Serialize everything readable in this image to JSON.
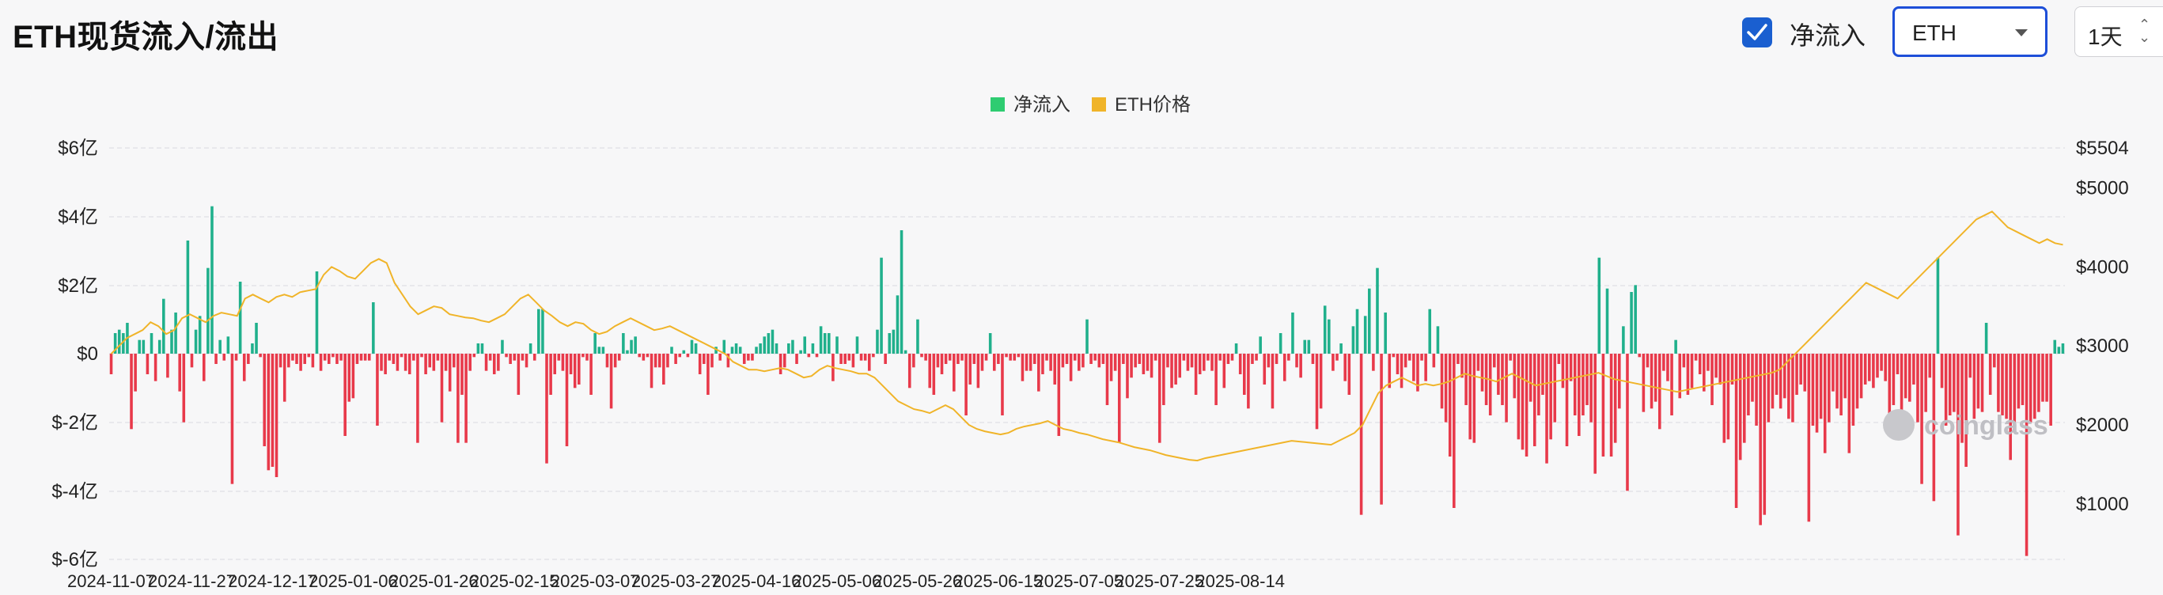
{
  "header": {
    "title": "ETH现货流入/流出",
    "checkbox_label": "净流入",
    "checkbox_checked": true,
    "asset_select": "ETH",
    "interval_select": "1天"
  },
  "colors": {
    "inflow": "#20b08c",
    "outflow": "#e8394a",
    "price": "#f0b429",
    "legend_inflow": "#2ecc71",
    "checkbox": "#1a5fd0"
  },
  "watermark": "coinglass",
  "chart_data": {
    "type": "bar",
    "legend": [
      "净流入",
      "ETH价格"
    ],
    "legend_position": "top-center",
    "grid": true,
    "x_tick_labels": [
      "2024-11-07",
      "2024-11-27",
      "2024-12-17",
      "2025-01-06",
      "2025-01-26",
      "2025-02-15",
      "2025-03-07",
      "2025-03-27",
      "2025-04-16",
      "2025-05-06",
      "2025-05-26",
      "2025-06-15",
      "2025-07-05",
      "2025-07-25",
      "2025-08-14"
    ],
    "y_left": {
      "ylim": [
        -600000000,
        600000000
      ],
      "ticks": [
        "$6亿",
        "$4亿",
        "$2亿",
        "$0",
        "$-2亿",
        "$-4亿",
        "$-6亿"
      ]
    },
    "y_right": {
      "ylim": [
        300,
        5504
      ],
      "ticks": [
        "$5504",
        "$5000",
        "$4000",
        "$3000",
        "$2000",
        "$1000"
      ]
    },
    "series": [
      {
        "name": "净流入",
        "unit": "亿美元",
        "start_date": "2024-11-07",
        "values": [
          -0.6,
          0.6,
          0.7,
          0.6,
          0.9,
          -2.2,
          -1.1,
          0.4,
          0.4,
          -0.6,
          0.6,
          -0.8,
          0.4,
          1.6,
          -0.7,
          0.7,
          1.2,
          -1.1,
          -2.0,
          3.3,
          -0.4,
          0.7,
          1.1,
          -0.8,
          2.5,
          4.3,
          -0.3,
          0.4,
          -0.2,
          0.5,
          -3.8,
          -0.2,
          2.1,
          -0.8,
          -0.3,
          0.3,
          0.9,
          -0.1,
          -2.7,
          -3.4,
          -3.3,
          -3.6,
          -0.4,
          -1.4,
          -0.4,
          -0.2,
          -0.3,
          -0.5,
          -0.3,
          -0.1,
          -0.4,
          2.4,
          -0.5,
          -0.2,
          -0.3,
          -0.1,
          -0.3,
          -0.2,
          -2.4,
          -1.4,
          -1.3,
          -0.3,
          -0.2,
          -0.2,
          -0.2,
          1.5,
          -2.1,
          -0.5,
          -0.6,
          -0.2,
          -0.3,
          -0.5,
          -0.1,
          -0.5,
          -0.6,
          -0.2,
          -2.6,
          -0.1,
          -0.6,
          -0.4,
          -0.5,
          -0.2,
          -2.0,
          -0.5,
          -1.1,
          -0.4,
          -2.6,
          -1.2,
          -2.6,
          -0.5,
          -0.1,
          0.3,
          0.3,
          -0.5,
          -0.2,
          -0.6,
          -0.5,
          0.4,
          -0.1,
          -0.3,
          -0.2,
          -1.2,
          -0.2,
          -0.4,
          0.3,
          -0.2,
          1.3,
          1.3,
          -3.2,
          -1.2,
          -0.6,
          -0.2,
          -0.5,
          -2.7,
          -0.6,
          -1.0,
          -0.9,
          -0.1,
          -0.2,
          -1.2,
          0.6,
          0.2,
          0.2,
          -0.4,
          -1.6,
          -0.4,
          -0.2,
          0.6,
          0.1,
          0.4,
          0.5,
          -0.1,
          -0.2,
          -0.1,
          -1.0,
          -0.4,
          -0.4,
          -0.9,
          -0.4,
          0.2,
          -0.3,
          -0.1,
          0.1,
          -0.1,
          0.4,
          0.3,
          -0.6,
          -0.3,
          -1.2,
          -0.4,
          0.2,
          -0.2,
          0.4,
          -0.4,
          0.2,
          0.3,
          0.2,
          -0.3,
          -0.2,
          -0.2,
          0.2,
          0.3,
          0.5,
          0.6,
          0.7,
          0.3,
          -0.6,
          -0.4,
          0.3,
          0.4,
          -0.3,
          0.1,
          0.5,
          -0.1,
          0.3,
          -0.1,
          0.8,
          0.6,
          0.6,
          -0.8,
          0.5,
          -0.3,
          -0.3,
          -0.2,
          -0.4,
          0.5,
          -0.2,
          -0.2,
          -0.5,
          -0.1,
          0.7,
          2.8,
          -0.3,
          0.6,
          0.7,
          1.7,
          3.6,
          0.1,
          -1.0,
          -0.4,
          1.0,
          -0.1,
          -0.2,
          -1.0,
          -1.2,
          -0.4,
          -0.6,
          -0.3,
          -0.2,
          -1.1,
          -0.3,
          -0.2,
          -1.8,
          -0.9,
          -0.3,
          -1.0,
          -0.5,
          -0.2,
          0.6,
          -0.5,
          -0.3,
          -1.8,
          -0.1,
          -0.2,
          -0.2,
          -0.1,
          -0.8,
          -0.5,
          -0.5,
          -0.3,
          -1.1,
          -0.6,
          -0.2,
          -0.5,
          -0.9,
          -2.4,
          -0.4,
          -0.3,
          -0.8,
          -0.2,
          -0.5,
          -0.4,
          1.0,
          -0.3,
          -0.2,
          -0.4,
          -0.3,
          -1.5,
          -0.8,
          -0.5,
          -2.6,
          -0.3,
          -1.3,
          -0.7,
          -0.4,
          -0.3,
          -0.6,
          -0.5,
          -0.7,
          -0.2,
          -2.6,
          -1.5,
          -0.4,
          -1.0,
          -0.9,
          -0.7,
          -0.2,
          -0.5,
          -0.4,
          -1.2,
          -0.6,
          -0.5,
          -0.2,
          -0.5,
          -1.5,
          -0.2,
          -1.0,
          -0.3,
          -0.2,
          0.3,
          -0.6,
          -1.2,
          -1.6,
          -0.3,
          -0.2,
          0.5,
          -0.9,
          -0.4,
          -1.6,
          -0.3,
          0.6,
          -0.8,
          -0.2,
          1.2,
          -0.4,
          -0.7,
          0.4,
          0.4,
          -0.3,
          -2.2,
          -1.6,
          1.4,
          1.0,
          -0.5,
          -0.2,
          0.3,
          -0.8,
          -1.2,
          0.8,
          1.3,
          -4.7,
          1.1,
          1.9,
          -0.5,
          2.5,
          -4.4,
          1.2,
          -1.0,
          -0.1,
          -0.6,
          -1.0,
          -0.4,
          -0.2,
          -0.8,
          -1.1,
          -0.2,
          -0.8,
          1.3,
          -0.4,
          0.8,
          -1.6,
          -2.0,
          -3.0,
          -4.5,
          -0.3,
          -0.7,
          -1.5,
          -2.5,
          -2.6,
          -0.5,
          -1.1,
          -1.5,
          -1.8,
          -0.4,
          -1.2,
          -1.5,
          -2.0,
          -0.2,
          -1.3,
          -2.5,
          -2.8,
          -3.0,
          -1.4,
          -2.7,
          -1.8,
          -1.2,
          -3.2,
          -2.5,
          -2.0,
          -0.3,
          -1.0,
          -2.7,
          -0.8,
          -1.8,
          -2.4,
          -1.8,
          -1.5,
          -2.0,
          -3.5,
          2.8,
          -3.0,
          1.9,
          -3.0,
          -2.6,
          -1.6,
          0.8,
          -4.0,
          1.8,
          2.0,
          -0.1,
          -1.7,
          -0.4,
          -1.6,
          -1.4,
          -2.2,
          -0.5,
          -0.8,
          -1.8,
          0.4,
          -1.3,
          -0.4,
          -1.2,
          -1.0,
          -0.2,
          -0.6,
          -1.1,
          -0.5,
          -1.5,
          -0.7,
          -0.9,
          -2.6,
          -2.5,
          -0.9,
          -4.5,
          -3.1,
          -2.6,
          -1.8,
          -1.4,
          -2.1,
          -5.0,
          -4.7,
          -2.0,
          -1.6,
          -1.2,
          -1.6,
          -1.3,
          -1.9,
          -2.0,
          -1.2,
          -0.9,
          -1.1,
          -4.9,
          -2.1,
          -2.3,
          -1.9,
          -2.9,
          -2.0,
          -1.1,
          -1.6,
          -1.8,
          -1.3,
          -2.9,
          -2.1,
          -1.6,
          -1.3,
          -0.9,
          -0.8,
          -1.0,
          -0.7,
          -0.5,
          -0.8,
          -1.8,
          -1.5,
          -0.6,
          -2.1,
          -1.3,
          -1.4,
          -0.9,
          -2.0,
          -3.8,
          -1.7,
          -0.7,
          -4.3,
          2.8,
          -1.0,
          -2.1,
          -1.8,
          -1.7,
          -5.3,
          -2.6,
          -3.3,
          -0.7,
          -1.9,
          -1.6,
          -1.7,
          0.9,
          -1.2,
          -0.4,
          -1.7,
          -1.8,
          -1.9,
          -3.1,
          -2.3,
          -1.6,
          -1.5,
          -5.9,
          -2.0,
          -1.9,
          -1.7,
          -1.4,
          -1.4,
          -2.1,
          0.4,
          0.2,
          0.3
        ]
      },
      {
        "name": "ETH价格",
        "unit": "USD",
        "values": [
          2900,
          3000,
          3100,
          3150,
          3200,
          3300,
          3250,
          3150,
          3200,
          3350,
          3400,
          3350,
          3300,
          3380,
          3420,
          3400,
          3380,
          3600,
          3650,
          3600,
          3550,
          3620,
          3650,
          3620,
          3680,
          3700,
          3720,
          3900,
          4000,
          3950,
          3880,
          3850,
          3950,
          4050,
          4100,
          4050,
          3800,
          3650,
          3500,
          3400,
          3450,
          3500,
          3480,
          3400,
          3380,
          3360,
          3350,
          3320,
          3300,
          3350,
          3400,
          3500,
          3600,
          3650,
          3550,
          3450,
          3380,
          3300,
          3250,
          3300,
          3280,
          3200,
          3150,
          3180,
          3250,
          3300,
          3350,
          3300,
          3250,
          3200,
          3220,
          3250,
          3200,
          3150,
          3100,
          3050,
          3000,
          2950,
          2900,
          2800,
          2750,
          2700,
          2700,
          2680,
          2700,
          2720,
          2700,
          2650,
          2600,
          2620,
          2700,
          2750,
          2720,
          2700,
          2680,
          2650,
          2650,
          2600,
          2500,
          2400,
          2300,
          2250,
          2200,
          2180,
          2150,
          2200,
          2250,
          2200,
          2100,
          2000,
          1950,
          1920,
          1900,
          1880,
          1900,
          1950,
          1980,
          2000,
          2020,
          2050,
          2000,
          1950,
          1930,
          1900,
          1880,
          1850,
          1820,
          1800,
          1780,
          1750,
          1720,
          1700,
          1680,
          1650,
          1620,
          1600,
          1580,
          1560,
          1550,
          1580,
          1600,
          1620,
          1640,
          1660,
          1680,
          1700,
          1720,
          1740,
          1760,
          1780,
          1800,
          1790,
          1780,
          1770,
          1760,
          1750,
          1800,
          1850,
          1900,
          2000,
          2200,
          2400,
          2500,
          2550,
          2600,
          2550,
          2500,
          2520,
          2500,
          2520,
          2550,
          2600,
          2650,
          2620,
          2600,
          2580,
          2550,
          2600,
          2650,
          2600,
          2550,
          2500,
          2520,
          2540,
          2560,
          2580,
          2600,
          2620,
          2640,
          2660,
          2620,
          2580,
          2560,
          2540,
          2520,
          2500,
          2480,
          2460,
          2440,
          2420,
          2440,
          2460,
          2480,
          2500,
          2520,
          2540,
          2560,
          2580,
          2600,
          2620,
          2640,
          2660,
          2700,
          2800,
          2900,
          3000,
          3100,
          3200,
          3300,
          3400,
          3500,
          3600,
          3700,
          3800,
          3750,
          3700,
          3650,
          3600,
          3700,
          3800,
          3900,
          4000,
          4100,
          4200,
          4300,
          4400,
          4500,
          4600,
          4650,
          4700,
          4600,
          4500,
          4450,
          4400,
          4350,
          4300,
          4350,
          4300,
          4280
        ]
      }
    ]
  }
}
